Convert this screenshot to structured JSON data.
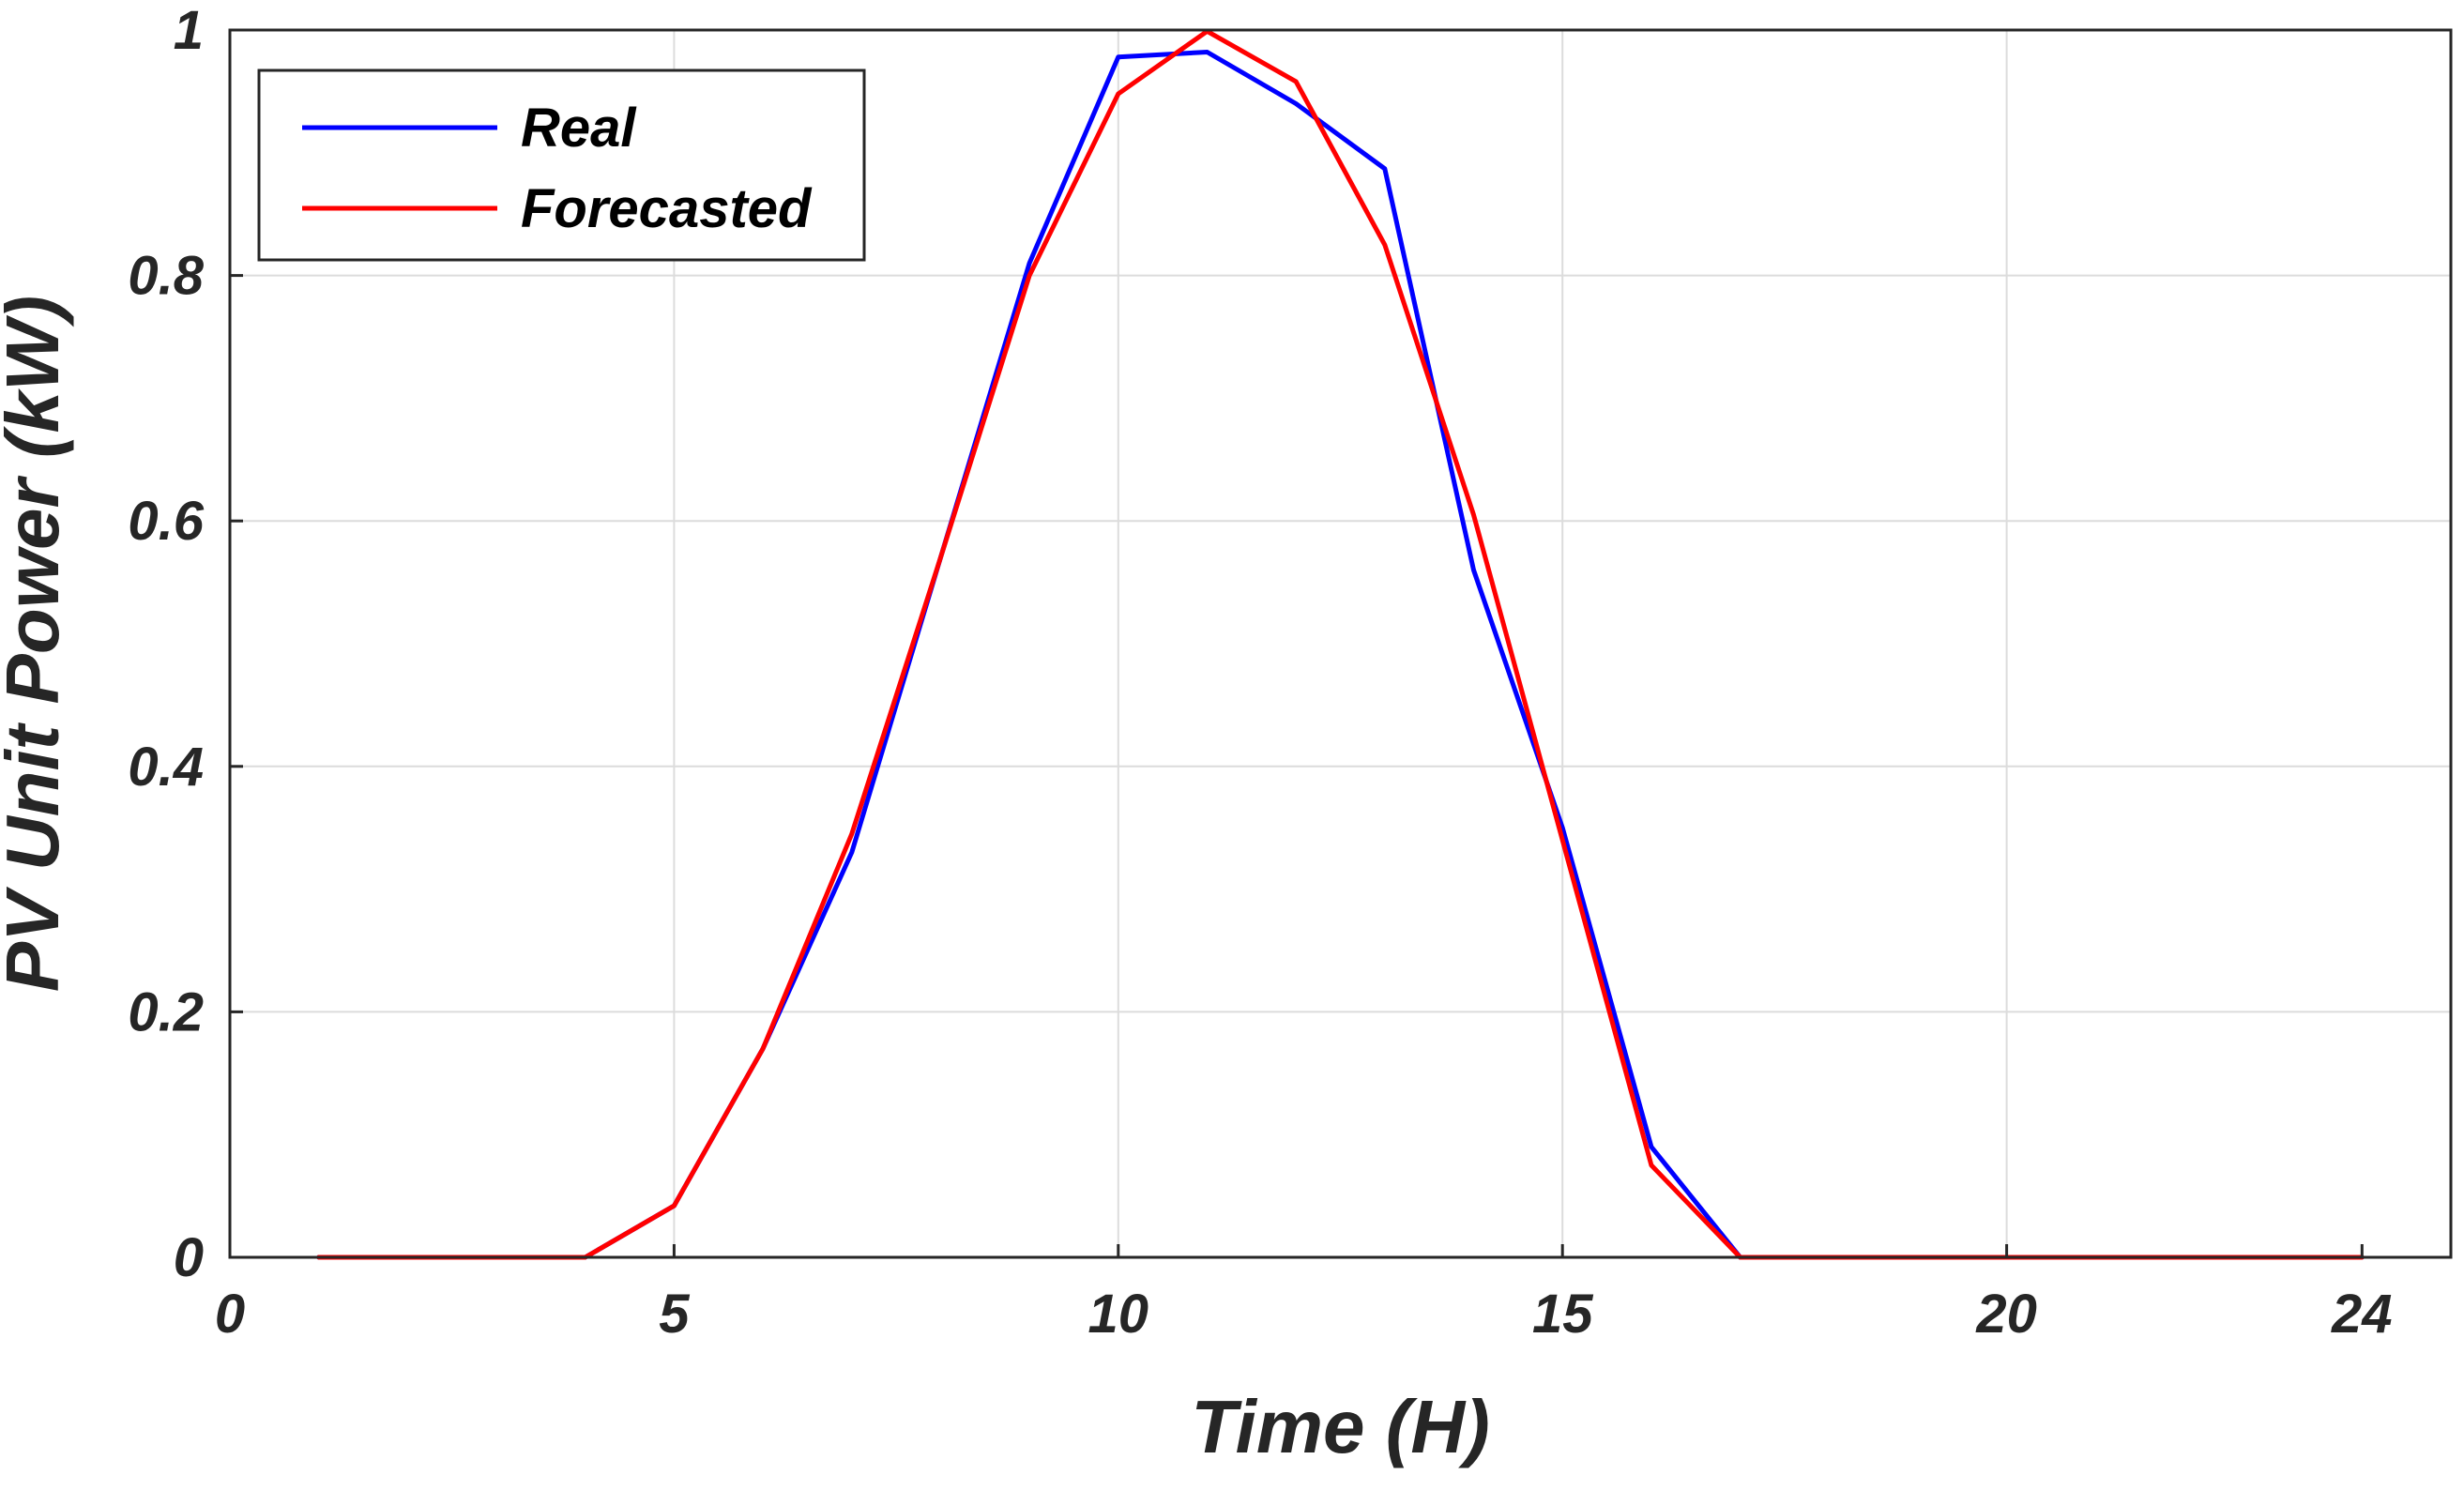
{
  "chart_data": {
    "type": "line",
    "xlabel": "Time (H)",
    "ylabel": "PV Unit Power (kW)",
    "xlim": [
      0,
      25
    ],
    "ylim": [
      0,
      1
    ],
    "xticks": [
      0,
      5,
      10,
      15,
      20,
      24
    ],
    "xtick_labels": [
      "0",
      "5",
      "10",
      "15",
      "20",
      "24"
    ],
    "yticks": [
      0,
      0.2,
      0.4,
      0.6,
      0.8,
      1
    ],
    "ytick_labels": [
      "0",
      "0.2",
      "0.4",
      "0.6",
      "0.8",
      "1"
    ],
    "grid": true,
    "legend_position": "top-left",
    "x": [
      1,
      2,
      3,
      4,
      5,
      6,
      7,
      8,
      9,
      10,
      11,
      12,
      13,
      14,
      15,
      16,
      17,
      18,
      19,
      20,
      21,
      22,
      23,
      24
    ],
    "series": [
      {
        "name": "Real",
        "color": "#0000ff",
        "values": [
          0,
          0,
          0,
          0,
          0.042,
          0.17,
          0.33,
          0.57,
          0.81,
          0.978,
          0.982,
          0.94,
          0.887,
          0.56,
          0.35,
          0.09,
          0,
          0,
          0,
          0,
          0,
          0,
          0,
          0
        ]
      },
      {
        "name": "Forecasted",
        "color": "#ff0000",
        "values": [
          0,
          0,
          0,
          0,
          0.042,
          0.17,
          0.345,
          0.57,
          0.8,
          0.948,
          0.999,
          0.958,
          0.825,
          0.605,
          0.34,
          0.075,
          0,
          0,
          0,
          0,
          0,
          0,
          0,
          0
        ]
      }
    ]
  }
}
